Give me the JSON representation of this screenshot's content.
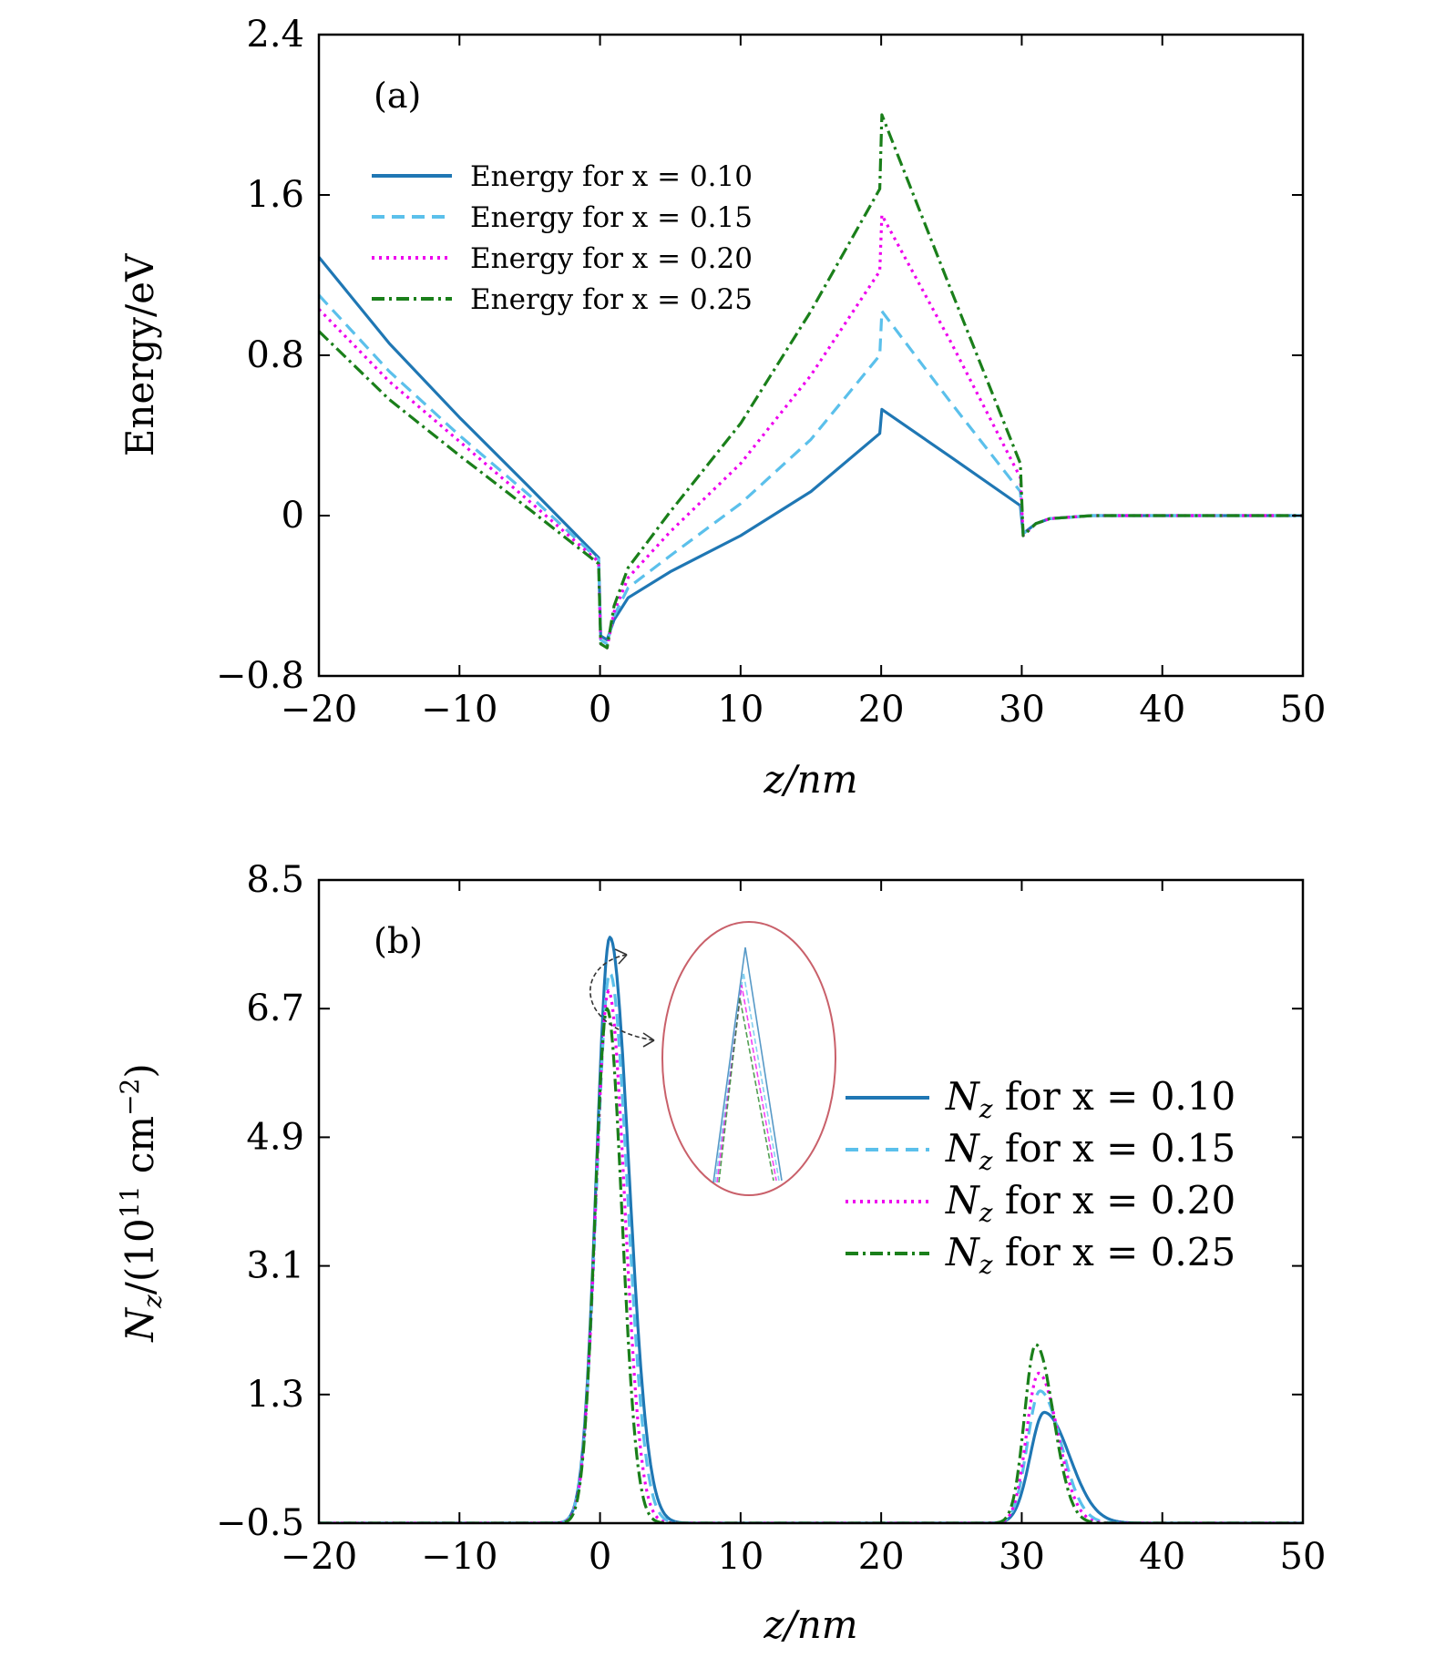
{
  "chart_data": [
    {
      "panel": "(a)",
      "type": "line",
      "xlabel": "z/nm",
      "ylabel": "Energy/eV",
      "xlim": [
        -20,
        50
      ],
      "ylim": [
        -0.8,
        2.4
      ],
      "xticks": [
        -20,
        -10,
        0,
        10,
        20,
        30,
        40,
        50
      ],
      "xtick_labels": [
        "−20",
        "−10",
        "0",
        "10",
        "20",
        "30",
        "40",
        "50"
      ],
      "yticks": [
        -0.8,
        0,
        0.8,
        1.6,
        2.4
      ],
      "ytick_labels": [
        "−0.8",
        "0",
        "0.8",
        "1.6",
        "2.4"
      ],
      "legend_position": "top-left",
      "series": [
        {
          "name": "Energy for x = 0.10",
          "color": "#1f77b4",
          "dash": "solid",
          "points": [
            [
              -20,
              1.29
            ],
            [
              -15,
              0.86
            ],
            [
              -10,
              0.49
            ],
            [
              -5,
              0.14
            ],
            [
              -0.1,
              -0.21
            ],
            [
              0.05,
              -0.6
            ],
            [
              0.5,
              -0.62
            ],
            [
              1,
              -0.52
            ],
            [
              2,
              -0.41
            ],
            [
              5,
              -0.28
            ],
            [
              10,
              -0.1
            ],
            [
              15,
              0.12
            ],
            [
              19.9,
              0.41
            ],
            [
              20.05,
              0.53
            ],
            [
              25,
              0.29
            ],
            [
              29.9,
              0.05
            ],
            [
              30.1,
              -0.09
            ],
            [
              31,
              -0.04
            ],
            [
              32,
              -0.015
            ],
            [
              35,
              0
            ],
            [
              50,
              0
            ]
          ]
        },
        {
          "name": "Energy for x = 0.15",
          "color": "#5bc0eb",
          "dash": "dashed",
          "points": [
            [
              -20,
              1.1
            ],
            [
              -15,
              0.72
            ],
            [
              -10,
              0.4
            ],
            [
              -5,
              0.1
            ],
            [
              -0.1,
              -0.22
            ],
            [
              0.05,
              -0.62
            ],
            [
              0.5,
              -0.64
            ],
            [
              1,
              -0.5
            ],
            [
              2,
              -0.36
            ],
            [
              5,
              -0.2
            ],
            [
              10,
              0.06
            ],
            [
              15,
              0.38
            ],
            [
              19.9,
              0.8
            ],
            [
              20.05,
              1.02
            ],
            [
              25,
              0.56
            ],
            [
              29.9,
              0.12
            ],
            [
              30.1,
              -0.09
            ],
            [
              31,
              -0.04
            ],
            [
              32,
              -0.015
            ],
            [
              35,
              0
            ],
            [
              50,
              0
            ]
          ]
        },
        {
          "name": "Energy for x = 0.20",
          "color": "#ee00ee",
          "dash": "dotted",
          "points": [
            [
              -20,
              1.03
            ],
            [
              -15,
              0.67
            ],
            [
              -10,
              0.37
            ],
            [
              -5,
              0.07
            ],
            [
              -0.1,
              -0.23
            ],
            [
              0.05,
              -0.64
            ],
            [
              0.5,
              -0.66
            ],
            [
              1,
              -0.48
            ],
            [
              2,
              -0.31
            ],
            [
              5,
              -0.08
            ],
            [
              10,
              0.26
            ],
            [
              15,
              0.7
            ],
            [
              19.9,
              1.22
            ],
            [
              20.05,
              1.5
            ],
            [
              25,
              0.86
            ],
            [
              29.9,
              0.19
            ],
            [
              30.1,
              -0.1
            ],
            [
              31,
              -0.04
            ],
            [
              32,
              -0.015
            ],
            [
              35,
              0
            ],
            [
              50,
              0
            ]
          ]
        },
        {
          "name": "Energy for x = 0.25",
          "color": "#1a7f1a",
          "dash": "dashdot",
          "points": [
            [
              -20,
              0.92
            ],
            [
              -15,
              0.58
            ],
            [
              -10,
              0.3
            ],
            [
              -5,
              0.03
            ],
            [
              -0.1,
              -0.24
            ],
            [
              0.05,
              -0.64
            ],
            [
              0.5,
              -0.66
            ],
            [
              1,
              -0.45
            ],
            [
              2,
              -0.26
            ],
            [
              5,
              0.02
            ],
            [
              10,
              0.46
            ],
            [
              15,
              1.02
            ],
            [
              19.9,
              1.63
            ],
            [
              20.05,
              2.0
            ],
            [
              25,
              1.12
            ],
            [
              29.9,
              0.26
            ],
            [
              30.1,
              -0.1
            ],
            [
              31,
              -0.04
            ],
            [
              32,
              -0.015
            ],
            [
              35,
              0
            ],
            [
              50,
              0
            ]
          ]
        }
      ]
    },
    {
      "panel": "(b)",
      "type": "line",
      "xlabel": "z/nm",
      "ylabel_main": "N",
      "ylabel_sub": "z",
      "ylabel_rest": "/(10",
      "ylabel_sup": "11",
      "ylabel_unit": " cm",
      "ylabel_unit_sup": "−2",
      "ylabel_close": ")",
      "xlim": [
        -20,
        50
      ],
      "ylim": [
        -0.5,
        8.5
      ],
      "xticks": [
        -20,
        -10,
        0,
        10,
        20,
        30,
        40,
        50
      ],
      "xtick_labels": [
        "−20",
        "−10",
        "0",
        "10",
        "20",
        "30",
        "40",
        "50"
      ],
      "yticks": [
        -0.5,
        1.3,
        3.1,
        4.9,
        6.7,
        8.5
      ],
      "ytick_labels": [
        "−0.5",
        "1.3",
        "3.1",
        "4.9",
        "6.7",
        "8.5"
      ],
      "legend_position": "center-right",
      "inset": "magnified view of the peak near z = 0.7 nm",
      "series": [
        {
          "name_main": "N",
          "name_sub": "z",
          "name_rest": " for x = 0.10",
          "color": "#1f77b4",
          "dash": "solid",
          "peak1": {
            "center": 0.7,
            "height": 8.2,
            "wl": 0.95,
            "wr": 1.35
          },
          "peak2": {
            "center": 31.6,
            "height": 1.55,
            "wl": 1.0,
            "wr": 1.8
          }
        },
        {
          "name_main": "N",
          "name_sub": "z",
          "name_rest": " for x = 0.15",
          "color": "#5bc0eb",
          "dash": "dashed",
          "peak1": {
            "center": 0.7,
            "height": 7.7,
            "wl": 0.95,
            "wr": 1.25
          },
          "peak2": {
            "center": 31.3,
            "height": 1.85,
            "wl": 0.9,
            "wr": 1.5
          }
        },
        {
          "name_main": "N",
          "name_sub": "z",
          "name_rest": " for x = 0.20",
          "color": "#ee00ee",
          "dash": "dotted",
          "peak1": {
            "center": 0.6,
            "height": 7.45,
            "wl": 0.9,
            "wr": 1.15
          },
          "peak2": {
            "center": 31.2,
            "height": 2.1,
            "wl": 0.85,
            "wr": 1.35
          }
        },
        {
          "name_main": "N",
          "name_sub": "z",
          "name_rest": " for x = 0.25",
          "color": "#1a7f1a",
          "dash": "dashdot",
          "peak1": {
            "center": 0.5,
            "height": 7.2,
            "wl": 0.85,
            "wr": 1.05
          },
          "peak2": {
            "center": 31.0,
            "height": 2.5,
            "wl": 0.8,
            "wr": 1.25
          }
        }
      ]
    }
  ]
}
